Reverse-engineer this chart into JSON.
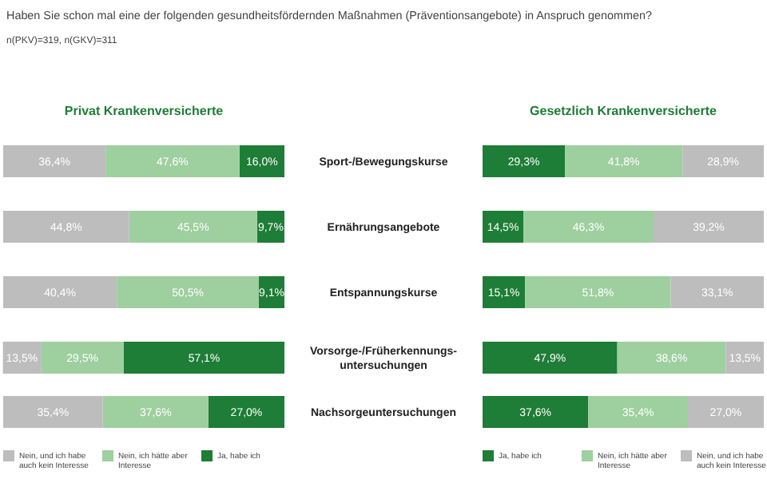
{
  "chart_data": [
    {
      "type": "bar",
      "orientation": "horizontal",
      "stacked": true,
      "title": "Privat Krankenversicherte",
      "annotations": [
        "Haben Sie schon mal eine der folgenden gesundheitsfördernden Maßnahmen (Präventionsangebote) in Anspruch genommen?",
        "n(PKV)=319, n(GKV)=311"
      ],
      "categories": [
        "Sport-/Bewegungskurse",
        "Ernährungsangebote",
        "Entspannungskurse",
        "Vorsorge-/Früherkennungs-untersuchungen",
        "Nachsorgeuntersuchungen"
      ],
      "xlim": [
        100,
        0
      ],
      "legend": "bottom",
      "series": [
        {
          "name": "Ja, habe ich",
          "color": "#1e7d36",
          "values": [
            16.0,
            9.7,
            9.1,
            57.1,
            27.0
          ],
          "value_labels": [
            "16,0%",
            "9,7%",
            "9,1%",
            "57,1%",
            "27,0%"
          ]
        },
        {
          "name": "Nein, ich hätte aber Interesse",
          "color": "#9ecf9f",
          "values": [
            47.6,
            45.5,
            50.5,
            29.5,
            37.6
          ],
          "value_labels": [
            "47,6%",
            "45,5%",
            "50,5%",
            "29,5%",
            "37,6%"
          ]
        },
        {
          "name": "Nein, und ich habe auch kein Interesse",
          "color": "#bdbdbd",
          "values": [
            36.4,
            44.8,
            40.4,
            13.5,
            35.4
          ],
          "value_labels": [
            "36,4%",
            "44,8%",
            "40,4%",
            "13,5%",
            "35,4%"
          ]
        }
      ]
    },
    {
      "type": "bar",
      "orientation": "horizontal",
      "stacked": true,
      "title": "Gesetzlich Krankenversicherte",
      "categories": [
        null,
        null,
        null,
        null,
        null
      ],
      "xlim": [
        0,
        100
      ],
      "legend": "bottom",
      "series": [
        {
          "name": "Ja, habe ich",
          "color": "#1e7d36",
          "values": [
            29.3,
            14.5,
            15.1,
            47.9,
            37.6
          ],
          "value_labels": [
            "29,3%",
            "14,5%",
            "15,1%",
            "47,9%",
            "37,6%"
          ]
        },
        {
          "name": "Nein, ich hätte aber Interesse",
          "color": "#9ecf9f",
          "values": [
            41.8,
            46.3,
            51.8,
            38.6,
            35.4
          ],
          "value_labels": [
            "41,8%",
            "46,3%",
            "51,8%",
            "38,6%",
            "35,4%"
          ]
        },
        {
          "name": "Nein, und ich habe auch kein Interesse",
          "color": "#bdbdbd",
          "values": [
            28.9,
            39.2,
            33.1,
            13.5,
            27.0
          ],
          "value_labels": [
            "28,9%",
            "39,2%",
            "33,1%",
            "13,5%",
            "27,0%"
          ]
        }
      ]
    }
  ]
}
